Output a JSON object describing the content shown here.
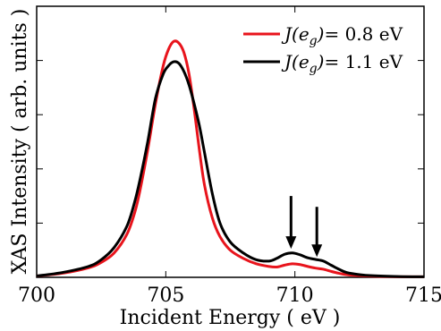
{
  "chart_data": {
    "type": "line",
    "xlabel": "Incident Energy ( eV )",
    "ylabel": "XAS Intensity ( arb. units )",
    "xlim": [
      700,
      715
    ],
    "ylim": [
      0,
      1.0
    ],
    "x_ticks": [
      700,
      705,
      710,
      715
    ],
    "x_tick_labels": [
      "700",
      "705",
      "710",
      "715"
    ],
    "y_ticks": [
      0.2,
      0.4,
      0.6,
      0.8,
      1.0
    ],
    "grid": false,
    "legend_position": "top-right",
    "series": [
      {
        "name": "J(eg)= 0.8 eV",
        "legend": {
          "symbol": "J",
          "open": "(e",
          "sub": "g",
          "close": ")",
          "value": "= 0.8 eV"
        },
        "color": "#e8141c",
        "x": [
          700,
          701,
          702,
          702.5,
          703,
          703.5,
          703.8,
          704,
          704.3,
          704.6,
          704.9,
          705.1,
          705.3,
          705.5,
          705.7,
          705.9,
          706.1,
          706.3,
          706.5,
          706.8,
          707.1,
          707.5,
          708,
          708.5,
          709,
          709.3,
          709.6,
          709.9,
          710.2,
          710.5,
          710.8,
          711.1,
          711.4,
          711.7,
          712,
          712.5,
          713,
          714,
          715
        ],
        "y": [
          0.005,
          0.015,
          0.035,
          0.055,
          0.09,
          0.16,
          0.24,
          0.32,
          0.47,
          0.64,
          0.78,
          0.84,
          0.87,
          0.865,
          0.83,
          0.75,
          0.62,
          0.47,
          0.34,
          0.22,
          0.15,
          0.1,
          0.07,
          0.05,
          0.04,
          0.038,
          0.045,
          0.05,
          0.047,
          0.04,
          0.034,
          0.03,
          0.022,
          0.015,
          0.01,
          0.006,
          0.004,
          0.002,
          0.002
        ]
      },
      {
        "name": "J(eg)= 1.1 eV",
        "legend": {
          "symbol": "J",
          "open": "(e",
          "sub": "g",
          "close": ")",
          "value": "= 1.1 eV"
        },
        "color": "#000000",
        "x": [
          700,
          701,
          702,
          702.5,
          703,
          703.5,
          703.8,
          704,
          704.3,
          704.6,
          704.9,
          705.1,
          705.3,
          705.5,
          705.7,
          705.9,
          706.1,
          706.3,
          706.5,
          706.8,
          707.1,
          707.5,
          708,
          708.5,
          709,
          709.3,
          709.6,
          709.9,
          710.2,
          710.5,
          710.8,
          711.1,
          711.4,
          711.7,
          712,
          712.5,
          713,
          714,
          715
        ],
        "y": [
          0.005,
          0.018,
          0.04,
          0.065,
          0.11,
          0.19,
          0.28,
          0.36,
          0.5,
          0.66,
          0.75,
          0.78,
          0.795,
          0.79,
          0.76,
          0.71,
          0.64,
          0.56,
          0.46,
          0.31,
          0.2,
          0.13,
          0.09,
          0.065,
          0.06,
          0.07,
          0.085,
          0.09,
          0.083,
          0.072,
          0.066,
          0.06,
          0.045,
          0.03,
          0.018,
          0.01,
          0.006,
          0.003,
          0.002
        ]
      }
    ],
    "annotations": [
      {
        "type": "arrow",
        "x": 709.85,
        "y_tail": 0.3,
        "y_head": 0.105
      },
      {
        "type": "arrow",
        "x": 710.85,
        "y_tail": 0.26,
        "y_head": 0.075
      }
    ]
  }
}
